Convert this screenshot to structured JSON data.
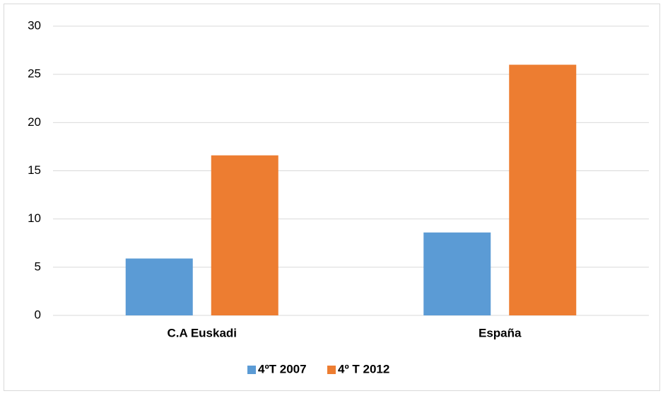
{
  "chart_data": {
    "type": "bar",
    "categories": [
      "C.A Euskadi",
      "España"
    ],
    "series": [
      {
        "name": "4ºT 2007",
        "color": "#5b9bd5",
        "values": [
          5.9,
          8.6
        ]
      },
      {
        "name": "4º T 2012",
        "color": "#ed7d31",
        "values": [
          16.6,
          26.0
        ]
      }
    ],
    "ylim": [
      0,
      30
    ],
    "yticks": [
      0,
      5,
      10,
      15,
      20,
      25,
      30
    ],
    "grid": true,
    "legend": "bottom"
  }
}
